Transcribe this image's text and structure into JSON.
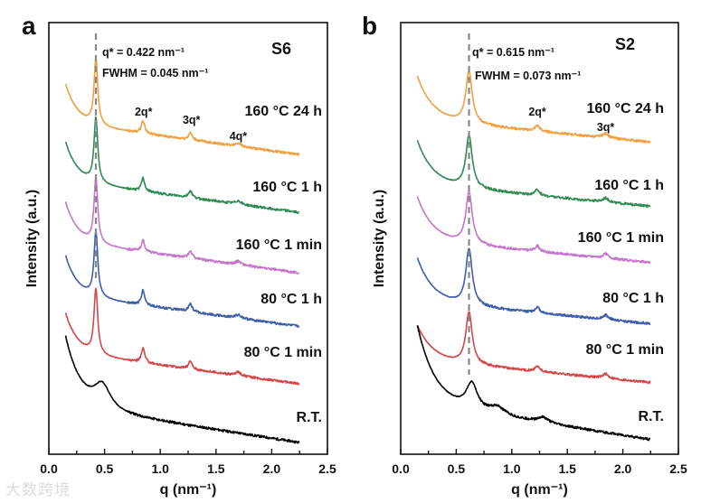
{
  "watermark": "大数跨境",
  "chart_data": [
    {
      "type": "line",
      "panel_label": "a",
      "sample": "S6",
      "xlabel": "q (nm⁻¹)",
      "ylabel": "Intensity (a.u.)",
      "xlim": [
        0,
        2.5
      ],
      "ylim": [
        0,
        100
      ],
      "xticks": [
        "0.0",
        "0.5",
        "1.0",
        "1.5",
        "2.0",
        "2.5"
      ],
      "xtick_values": [
        0,
        0.5,
        1.0,
        1.5,
        2.0,
        2.5
      ],
      "q_star": 0.422,
      "annotations": {
        "q_star": "q* = 0.422 nm⁻¹",
        "fwhm": "FWHM = 0.045 nm⁻¹",
        "peaks": [
          "2q*",
          "3q*",
          "4q*"
        ]
      },
      "peak_label_q": [
        0.85,
        1.28,
        1.7
      ],
      "series": [
        {
          "name": "160 °C 24 h",
          "color": "#f0a040",
          "base": 69.4,
          "slope": 3.5,
          "decay_amp": 9,
          "decay_len": 0.11,
          "peaks": [
            [
              0.422,
              15,
              0.02
            ],
            [
              0.845,
              3,
              0.018
            ],
            [
              1.27,
              1.6,
              0.02
            ],
            [
              1.7,
              0.8,
              0.03
            ]
          ]
        },
        {
          "name": "160 °C 1 h",
          "color": "#2f8a55",
          "base": 56,
          "slope": 3.5,
          "decay_amp": 9,
          "decay_len": 0.11,
          "peaks": [
            [
              0.422,
              15,
              0.02
            ],
            [
              0.845,
              3,
              0.018
            ],
            [
              1.27,
              1.6,
              0.02
            ],
            [
              1.7,
              0.8,
              0.03
            ]
          ]
        },
        {
          "name": "160 °C 1 min",
          "color": "#c476c8",
          "base": 42,
          "slope": 3.5,
          "decay_amp": 9,
          "decay_len": 0.11,
          "peaks": [
            [
              0.422,
              15,
              0.02
            ],
            [
              0.845,
              2.6,
              0.018
            ],
            [
              1.27,
              1.6,
              0.02
            ],
            [
              1.7,
              0.8,
              0.03
            ]
          ]
        },
        {
          "name": "80 °C 1 h",
          "color": "#3d5ea8",
          "base": 29.6,
          "slope": 3.5,
          "decay_amp": 9,
          "decay_len": 0.11,
          "peaks": [
            [
              0.422,
              15,
              0.02
            ],
            [
              0.845,
              3.4,
              0.018
            ],
            [
              1.27,
              1.8,
              0.02
            ],
            [
              1.7,
              0.8,
              0.03
            ]
          ]
        },
        {
          "name": "80 °C 1 min",
          "color": "#d04848",
          "base": 16.3,
          "slope": 3.5,
          "decay_amp": 9,
          "decay_len": 0.11,
          "peaks": [
            [
              0.422,
              15,
              0.02
            ],
            [
              0.845,
              3.4,
              0.018
            ],
            [
              1.27,
              1.8,
              0.02
            ],
            [
              1.7,
              0.8,
              0.03
            ]
          ]
        },
        {
          "name": "R.T.",
          "color": "#000000",
          "base": 2.7,
          "slope": 4,
          "decay_amp": 16,
          "decay_len": 0.14,
          "peaks": [
            [
              0.48,
              5.5,
              0.09
            ]
          ]
        }
      ]
    },
    {
      "type": "line",
      "panel_label": "b",
      "sample": "S2",
      "xlabel": "q (nm⁻¹)",
      "ylabel": "Intensity (a.u.)",
      "xlim": [
        0,
        2.5
      ],
      "ylim": [
        0,
        100
      ],
      "xticks": [
        "0.0",
        "0.5",
        "1.0",
        "1.5",
        "2.0",
        "2.5"
      ],
      "xtick_values": [
        0,
        0.5,
        1.0,
        1.5,
        2.0,
        2.5
      ],
      "q_star": 0.615,
      "annotations": {
        "q_star": "q* = 0.615 nm⁻¹",
        "fwhm": "FWHM = 0.073 nm⁻¹",
        "peaks": [
          "2q*",
          "3q*"
        ]
      },
      "peak_label_q": [
        1.23,
        1.845
      ],
      "series": [
        {
          "name": "160 °C 24 h",
          "color": "#f0a040",
          "base": 72.3,
          "slope": 2.5,
          "decay_amp": 10,
          "decay_len": 0.14,
          "peaks": [
            [
              0.615,
              12,
              0.035
            ],
            [
              1.23,
              1.3,
              0.025
            ],
            [
              1.845,
              1.0,
              0.03
            ]
          ]
        },
        {
          "name": "160 °C 1 h",
          "color": "#2f8a55",
          "base": 57.4,
          "slope": 2.5,
          "decay_amp": 10,
          "decay_len": 0.14,
          "peaks": [
            [
              0.615,
              12,
              0.035
            ],
            [
              1.23,
              1.3,
              0.025
            ],
            [
              1.845,
              1.0,
              0.03
            ]
          ]
        },
        {
          "name": "160 °C 1 min",
          "color": "#c476c8",
          "base": 44.4,
          "slope": 2.5,
          "decay_amp": 10,
          "decay_len": 0.14,
          "peaks": [
            [
              0.615,
              12,
              0.035
            ],
            [
              1.23,
              1.3,
              0.025
            ],
            [
              1.845,
              1.0,
              0.03
            ]
          ]
        },
        {
          "name": "80 °C 1 h",
          "color": "#3d5ea8",
          "base": 30.2,
          "slope": 2.5,
          "decay_amp": 10,
          "decay_len": 0.14,
          "peaks": [
            [
              0.615,
              13,
              0.035
            ],
            [
              1.23,
              1.3,
              0.025
            ],
            [
              1.845,
              1.0,
              0.03
            ]
          ]
        },
        {
          "name": "80 °C 1 min",
          "color": "#d04848",
          "base": 16.6,
          "slope": 2.5,
          "decay_amp": 8,
          "decay_len": 0.14,
          "peaks": [
            [
              0.615,
              12,
              0.035
            ],
            [
              1.23,
              1.3,
              0.025
            ],
            [
              1.845,
              1.0,
              0.03
            ]
          ]
        },
        {
          "name": "R.T.",
          "color": "#000000",
          "base": 3.4,
          "slope": 4,
          "decay_amp": 18,
          "decay_len": 0.16,
          "peaks": [
            [
              0.64,
              6,
              0.06
            ],
            [
              0.87,
              1.8,
              0.08
            ],
            [
              1.28,
              1.2,
              0.06
            ]
          ]
        }
      ]
    }
  ]
}
